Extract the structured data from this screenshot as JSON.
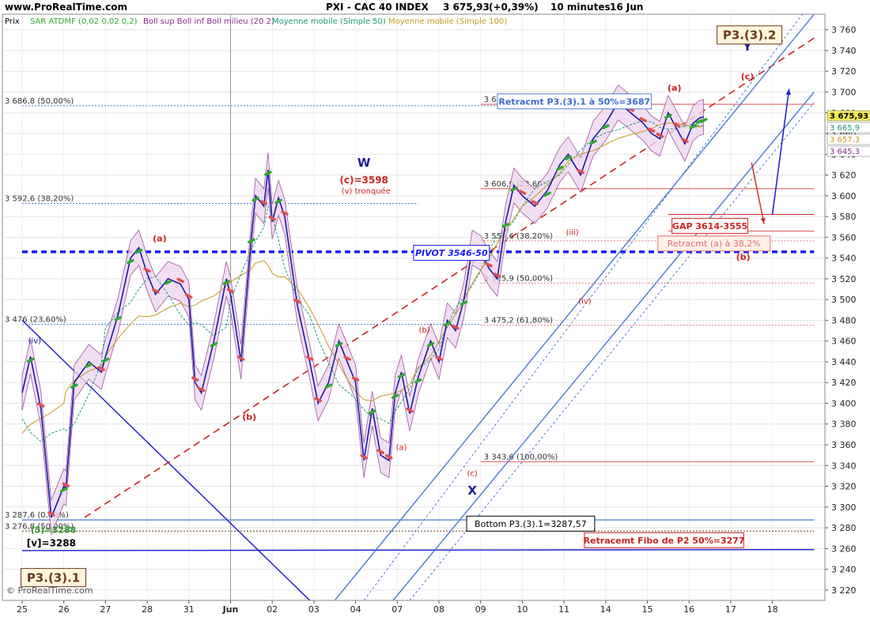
{
  "header": {
    "site": "www.ProRealTime.com",
    "title": "PXI - CAC 40 INDEX",
    "last": "3 675,93",
    "change": "(+0,39%)",
    "period": "10 minutes",
    "date": "16 Jun"
  },
  "legend": [
    {
      "label": "Prix",
      "color": "#000000"
    },
    {
      "label": "SAR ATDMF (0,02 0,02 0,2)",
      "color": "#2eaa2e"
    },
    {
      "label": "Boll sup Boll inf Boll milieu (20 2)",
      "color": "#8b2a8b"
    },
    {
      "label": "Moyenne mobile (Simple 50)",
      "color": "#1a9a7a"
    },
    {
      "label": "Moyenne mobile (Simple 100)",
      "color": "#c59a20"
    }
  ],
  "watermark": "© ProRealTime.com",
  "price_tags": [
    {
      "label": "3 675,93",
      "value": 3675.93,
      "bg": "#f2e85a",
      "fg": "#000000"
    },
    {
      "label": "3 665,9",
      "value": 3665.9,
      "bg": "#ffffff",
      "fg": "#1a9a7a"
    },
    {
      "label": "3 657,3",
      "value": 3657.3,
      "bg": "#ffffff",
      "fg": "#c59a20"
    },
    {
      "label": "3 645,3",
      "value": 3645.3,
      "bg": "#ffffff",
      "fg": "#8b2a8b"
    }
  ],
  "chart_data": {
    "type": "line",
    "subtype": "intraday candlestick with Elliott wave annotations",
    "title": "PXI - CAC 40 INDEX",
    "timeframe": "10 minutes",
    "ylim": [
      3210,
      3775
    ],
    "yticks": [
      3220,
      3240,
      3260,
      3280,
      3300,
      3320,
      3340,
      3360,
      3380,
      3400,
      3420,
      3440,
      3460,
      3480,
      3500,
      3520,
      3540,
      3560,
      3580,
      3600,
      3620,
      3640,
      3660,
      3680,
      3700,
      3720,
      3740,
      3760
    ],
    "ytick_labels": [
      "3 220",
      "3 240",
      "3 260",
      "3 280",
      "3 300",
      "3 320",
      "3 340",
      "3 360",
      "3 380",
      "3 400",
      "3 420",
      "3 440",
      "3 460",
      "3 480",
      "3 500",
      "3 520",
      "3 540",
      "3 560",
      "3 580",
      "3 600",
      "3 620",
      "3 640",
      "3 660",
      "3 680",
      "3 700",
      "3 720",
      "3 740",
      "3 760"
    ],
    "x_categories": [
      "25",
      "26",
      "27",
      "28",
      "31",
      "Jun",
      "02",
      "03",
      "04",
      "07",
      "08",
      "09",
      "10",
      "11",
      "14",
      "15",
      "16",
      "17",
      "18"
    ],
    "x_highlight": "Jun",
    "grid": true,
    "price_path": {
      "x": [
        0,
        0.2,
        0.45,
        0.7,
        1.0,
        1.05,
        1.25,
        1.6,
        1.9,
        2.0,
        2.3,
        2.6,
        2.8,
        3.0,
        3.2,
        3.5,
        3.8,
        4.0,
        4.15,
        4.3,
        4.6,
        4.9,
        5.0,
        5.25,
        5.5,
        5.6,
        5.8,
        5.9,
        6.0,
        6.15,
        6.3,
        6.6,
        6.9,
        7.1,
        7.35,
        7.6,
        7.8,
        8.0,
        8.2,
        8.4,
        8.6,
        8.8,
        8.95,
        9.1,
        9.3,
        9.5,
        9.8,
        10.0,
        10.2,
        10.4,
        10.6,
        10.8,
        11.0,
        11.2,
        11.4,
        11.6,
        11.8,
        12.0,
        12.3,
        12.6,
        12.9,
        13.1,
        13.4,
        13.7,
        14.0,
        14.3,
        14.6,
        14.9,
        15.1,
        15.3,
        15.5,
        15.7,
        15.9,
        16.1,
        16.25,
        16.35
      ],
      "y": [
        3410,
        3445,
        3395,
        3290,
        3320,
        3318,
        3420,
        3440,
        3430,
        3445,
        3485,
        3540,
        3550,
        3525,
        3505,
        3520,
        3515,
        3500,
        3420,
        3410,
        3460,
        3520,
        3505,
        3440,
        3560,
        3600,
        3590,
        3625,
        3575,
        3598,
        3580,
        3495,
        3440,
        3400,
        3420,
        3460,
        3440,
        3420,
        3345,
        3395,
        3350,
        3345,
        3410,
        3430,
        3390,
        3425,
        3460,
        3440,
        3480,
        3470,
        3500,
        3550,
        3545,
        3530,
        3520,
        3575,
        3610,
        3600,
        3590,
        3605,
        3630,
        3640,
        3620,
        3655,
        3670,
        3690,
        3680,
        3670,
        3660,
        3655,
        3680,
        3665,
        3650,
        3670,
        3675,
        3676
      ]
    },
    "horizontal_levels": [
      {
        "value": 3686.8,
        "label": "3 686,8 (50,00%)",
        "style": "dotted",
        "color": "#4a7bd0",
        "from_x": 0,
        "to_x": 13.3
      },
      {
        "value": 3592.6,
        "label": "3 592,6 (38,20%)",
        "style": "dotted",
        "color": "#4a7bd0",
        "from_x": 0,
        "to_x": 9.5
      },
      {
        "value": 3476,
        "label": "3 476 (23,60%)",
        "style": "dotted",
        "color": "#4a7bd0",
        "from_x": 0,
        "to_x": 11.0
      },
      {
        "value": 3287.6,
        "label": "3 287,6 (0,00%)",
        "style": "solid",
        "color": "#4a7bd0",
        "from_x": 0,
        "to_x": 19
      },
      {
        "value": 3276.8,
        "label": "3 276,8 (50,00%)",
        "style": "dotted",
        "color": "#6b3a1a",
        "from_x": 0,
        "to_x": 19
      },
      {
        "value": 3546,
        "label": "PIVOT 3546-50",
        "style": "dashed-bold",
        "color": "#1a1aff",
        "from_x": 0,
        "to_x": 19
      },
      {
        "value": 3688.2,
        "label": "3 688,2 (0,00%)",
        "style": "solid",
        "color": "#e07070",
        "from_x": 11.0,
        "to_x": 19
      },
      {
        "value": 3606.9,
        "label": "3 606,9 (23,60%)",
        "style": "solid",
        "color": "#e07070",
        "from_x": 11.0,
        "to_x": 19
      },
      {
        "value": 3556.6,
        "label": "3 556,6 (38,20%)",
        "style": "dotted",
        "color": "#e07070",
        "from_x": 11.0,
        "to_x": 19
      },
      {
        "value": 3515.9,
        "label": "3 515,9 (50,00%)",
        "style": "dotted",
        "color": "#e07070",
        "from_x": 11.0,
        "to_x": 19
      },
      {
        "value": 3475.2,
        "label": "3 475,2 (61,80%)",
        "style": "dotted",
        "color": "#e07070",
        "from_x": 11.0,
        "to_x": 19
      },
      {
        "value": 3343.6,
        "label": "3 343,6 (100,00%)",
        "style": "solid",
        "color": "#e07070",
        "from_x": 11.0,
        "to_x": 19
      },
      {
        "value": 3582,
        "label": "",
        "style": "solid",
        "color": "#cc3333",
        "from_x": 15.5,
        "to_x": 19
      },
      {
        "value": 3566,
        "label": "",
        "style": "solid",
        "color": "#e07070",
        "from_x": 15.5,
        "to_x": 19
      }
    ],
    "trend_lines": [
      {
        "from": [
          0,
          3480
        ],
        "to": [
          6.9,
          3210
        ],
        "color": "#1a1acc",
        "style": "solid"
      },
      {
        "from": [
          0,
          3258
        ],
        "to": [
          19,
          3259
        ],
        "color": "#1a1acc",
        "style": "solid"
      },
      {
        "from": [
          1.5,
          3290
        ],
        "to": [
          19,
          3752
        ],
        "color": "#cc2222",
        "style": "dashed"
      },
      {
        "from": [
          7.5,
          3210
        ],
        "to": [
          19,
          3775
        ],
        "color": "#4a7bd0",
        "style": "solid"
      },
      {
        "from": [
          8.9,
          3210
        ],
        "to": [
          19,
          3700
        ],
        "color": "#4a7bd0",
        "style": "solid"
      },
      {
        "from": [
          8.2,
          3210
        ],
        "to": [
          19,
          3790
        ],
        "color": "#4a7bd0",
        "style": "dotted"
      },
      {
        "from": [
          9.3,
          3210
        ],
        "to": [
          19,
          3690
        ],
        "color": "#4a7bd0",
        "style": "dotted"
      }
    ],
    "forecast_arrows": [
      {
        "from": [
          18.0,
          3582
        ],
        "to": [
          18.4,
          3703
        ],
        "color": "#1a1acc"
      },
      {
        "from": [
          17.5,
          3632
        ],
        "to": [
          17.8,
          3573
        ],
        "color": "#cc3333"
      }
    ],
    "annotations": [
      {
        "text": "W",
        "x": 8.2,
        "y": 3628,
        "color": "#1a1a99",
        "size": 15,
        "bold": true
      },
      {
        "text": "(c)=3598",
        "x": 8.2,
        "y": 3612,
        "color": "#cc2222",
        "size": 12,
        "bold": true
      },
      {
        "text": "(v) tronquée",
        "x": 8.25,
        "y": 3602,
        "color": "#cc2222",
        "size": 10,
        "bold": false
      },
      {
        "text": "X",
        "x": 10.8,
        "y": 3312,
        "color": "#1a1a99",
        "size": 15,
        "bold": true
      },
      {
        "text": "(c)",
        "x": 10.8,
        "y": 3330,
        "color": "#cc2222",
        "size": 10,
        "bold": false
      },
      {
        "text": "Y",
        "x": 17.4,
        "y": 3740,
        "color": "#1a1a99",
        "size": 15,
        "bold": true
      },
      {
        "text": "(c)",
        "x": 17.4,
        "y": 3712,
        "color": "#cc2222",
        "size": 11,
        "bold": true
      },
      {
        "text": "(a)",
        "x": 15.65,
        "y": 3701,
        "color": "#cc2222",
        "size": 11,
        "bold": true
      },
      {
        "text": "(b)",
        "x": 17.3,
        "y": 3538,
        "color": "#cc2222",
        "size": 11,
        "bold": true
      },
      {
        "text": "(a)",
        "x": 3.3,
        "y": 3556,
        "color": "#cc2222",
        "size": 11,
        "bold": true
      },
      {
        "text": "(b)",
        "x": 5.45,
        "y": 3384,
        "color": "#cc2222",
        "size": 11,
        "bold": true
      },
      {
        "text": "(a)",
        "x": 9.1,
        "y": 3355,
        "color": "#cc2222",
        "size": 10,
        "bold": false
      },
      {
        "text": "(b)",
        "x": 9.65,
        "y": 3468,
        "color": "#cc2222",
        "size": 10,
        "bold": false
      },
      {
        "text": "(iii)",
        "x": 13.2,
        "y": 3562,
        "color": "#cc2222",
        "size": 10,
        "bold": false
      },
      {
        "text": "(iv)",
        "x": 13.5,
        "y": 3496,
        "color": "#cc2222",
        "size": 10,
        "bold": false
      },
      {
        "text": "(iv)",
        "x": 0.3,
        "y": 3458,
        "color": "#1a1a99",
        "size": 10,
        "bold": false
      },
      {
        "text": "(5)=3288",
        "x": 0.75,
        "y": 3275,
        "color": "#2a9a2a",
        "size": 11,
        "bold": true
      },
      {
        "text": "[v]=3288",
        "x": 0.7,
        "y": 3262,
        "color": "#000000",
        "size": 12,
        "bold": true
      }
    ],
    "boxes": [
      {
        "text": "Retracmt P3.(3).1 à 50%=3687",
        "x": 13.25,
        "y": 3691,
        "fg": "#3a6ad0",
        "border": "#4a7bd0",
        "bg": "#ffffff",
        "bold": true
      },
      {
        "text": "PIVOT 3546-50",
        "x": 10.3,
        "y": 3545,
        "fg": "#1a1aff",
        "border": "#1a1aff",
        "bg": "#ffffff",
        "bold": true,
        "italic": true
      },
      {
        "text": "GAP 3614-3555",
        "x": 16.5,
        "y": 3571,
        "fg": "#cc2222",
        "border": "#cc2222",
        "bg": "#ffffff",
        "bold": true
      },
      {
        "text": "Retracmt (a) à 38,2%",
        "x": 16.6,
        "y": 3554,
        "fg": "#e07070",
        "border": "#e07070",
        "bg": "#fff0e8",
        "bold": false
      },
      {
        "text": "Bottom P3.(3).1=3287,57",
        "x": 12.2,
        "y": 3284,
        "fg": "#000000",
        "border": "#000000",
        "bg": "#ffffff",
        "bold": false
      },
      {
        "text": "Retracemt Fibo de P2 50%=3277",
        "x": 15.4,
        "y": 3268,
        "fg": "#cc2222",
        "border": "#cc2222",
        "bg": "#ffffff",
        "bold": true
      },
      {
        "text": "P3.(3).2",
        "x": 17.45,
        "y": 3755,
        "fg": "#6b3a1a",
        "border": "#6b3a1a",
        "bg": "#fff6dd",
        "bold": true,
        "size": 15
      },
      {
        "text": "P3.(3).1",
        "x": 0.75,
        "y": 3232,
        "fg": "#6b3a1a",
        "border": "#6b3a1a",
        "bg": "#fff6dd",
        "bold": true,
        "size": 15
      }
    ]
  }
}
